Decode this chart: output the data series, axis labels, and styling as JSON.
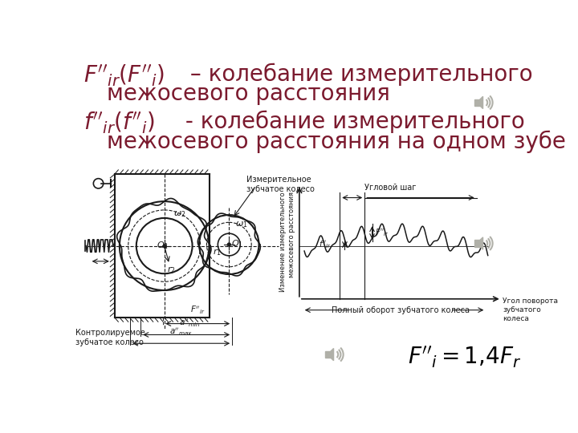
{
  "bg_color": "#ffffff",
  "text_color": "#7b1a2e",
  "diagram_color": "#1a1a1a",
  "font_size_title": 20,
  "title1_line1": "F′′ₐᵣ(F′′ᵢ) – колебание измерительного",
  "title1_line2": "   межосевого расстояния",
  "title2_line1": "f′′ₐᵣ(f′′ᵢ) - колебание измерительного",
  "title2_line2": "   межосевого расстояния на одном зубе"
}
